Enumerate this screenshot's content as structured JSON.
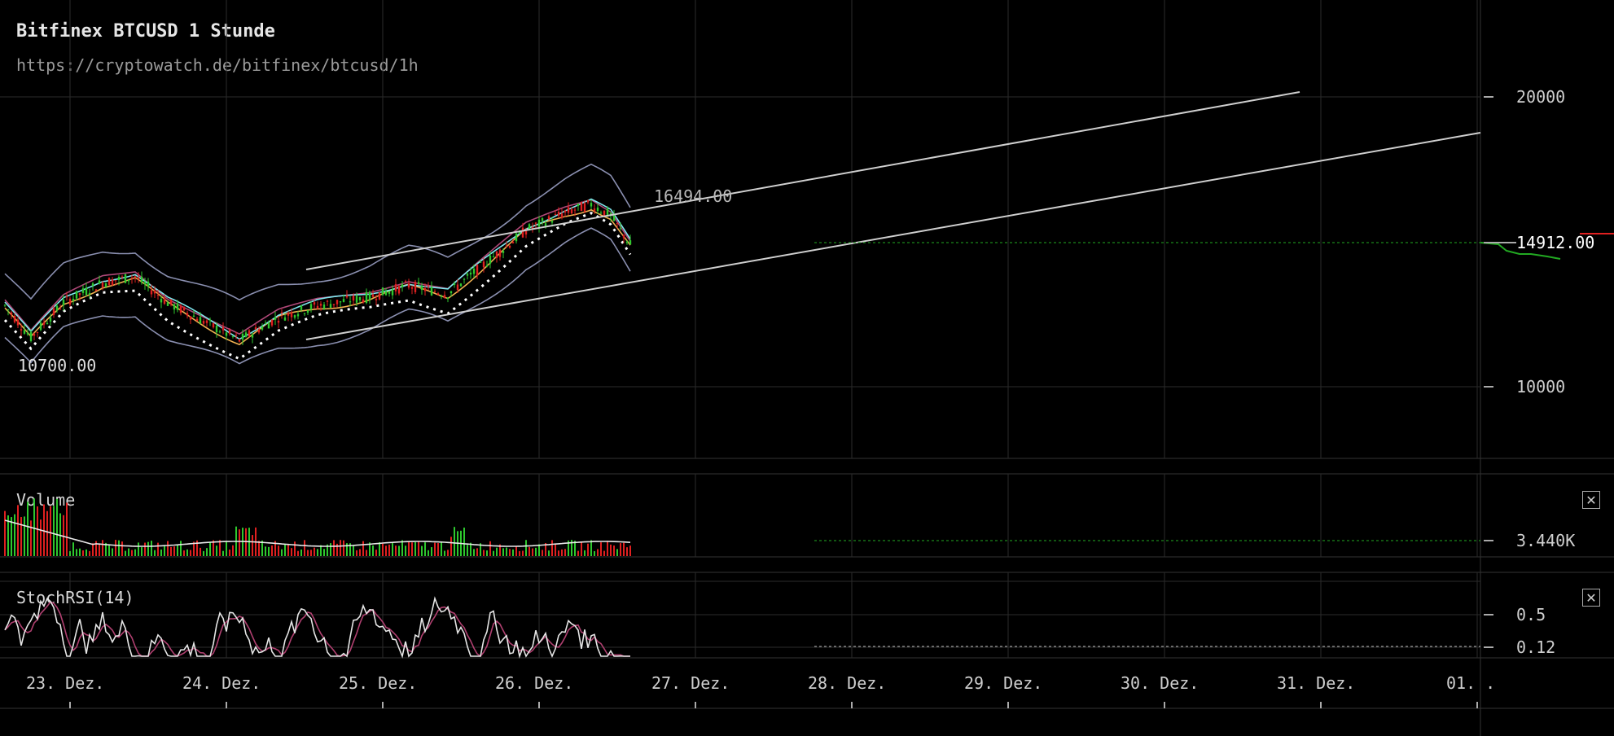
{
  "header": {
    "title": "Bitfinex BTCUSD 1 Stunde",
    "url": "https://cryptowatch.de/bitfinex/btcusd/1h"
  },
  "chart_data": {
    "type": "candlestick",
    "price": {
      "y_ticks": [
        "20000",
        "10000"
      ],
      "current_price": "14912.00",
      "high_label": "16494.00",
      "low_label": "10700.00",
      "ylim": [
        6500,
        22000
      ]
    },
    "volume": {
      "label": "Volume",
      "current": "3.440K"
    },
    "stochrsi": {
      "label": "StochRSI(14)",
      "ticks": [
        "0.5",
        "0.12"
      ]
    },
    "x_ticks": [
      "23. Dez.",
      "24. Dez.",
      "25. Dez.",
      "26. Dez.",
      "27. Dez.",
      "28. Dez.",
      "29. Dez.",
      "30. Dez.",
      "31. Dez.",
      "01. ."
    ],
    "grid": true,
    "colors": {
      "up": "#2ec82e",
      "down": "#e02020",
      "grid": "#2b2b2b",
      "trend": "#cfcfcf",
      "current": "#22aa22"
    }
  }
}
